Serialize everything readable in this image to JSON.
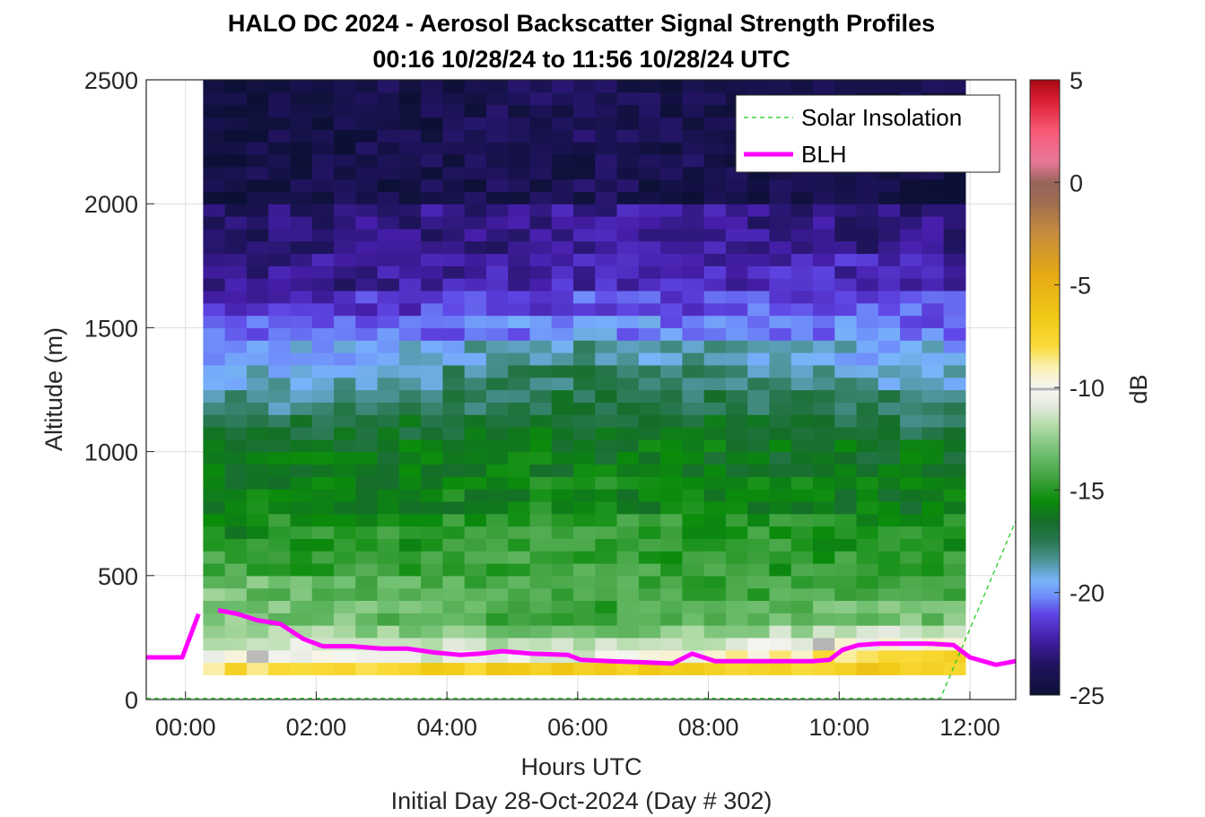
{
  "chart_data": {
    "type": "heatmap",
    "title": "HALO DC 2024 - Aerosol Backscatter Signal Strength Profiles",
    "subtitle": "00:16 10/28/24 to 11:56 10/28/24  UTC",
    "xlabel": "Hours UTC",
    "xlabel2": "Initial Day 28-Oct-2024 (Day # 302)",
    "ylabel": "Altitude (m)",
    "colorbar_label": "dB",
    "xlim": [
      -0.6,
      12.7
    ],
    "ylim": [
      0,
      2500
    ],
    "clim": [
      -25,
      5
    ],
    "x_ticks": [
      0,
      2,
      4,
      6,
      8,
      10,
      12
    ],
    "x_tick_labels": [
      "00:00",
      "02:00",
      "04:00",
      "06:00",
      "08:00",
      "10:00",
      "12:00"
    ],
    "y_ticks": [
      0,
      500,
      1000,
      1500,
      2000,
      2500
    ],
    "y_tick_labels": [
      "0",
      "500",
      "1000",
      "1500",
      "2000",
      "2500"
    ],
    "c_ticks": [
      5,
      0,
      -5,
      -10,
      -15,
      -20,
      -25
    ],
    "c_tick_labels": [
      "5",
      "0",
      "-5",
      "-10",
      "-15",
      "-20",
      "-25"
    ],
    "grid": true,
    "legend_placement": "top-right",
    "heatmap": {
      "x_start": 0.27,
      "x_end": 11.93,
      "y_start": 100,
      "y_end": 2500,
      "cell_height": 50,
      "columns": 35,
      "layers": [
        {
          "top": 150,
          "values": [
            -8,
            -7,
            -7
          ]
        },
        {
          "top": 200,
          "values": [
            -10,
            -11,
            -7
          ]
        },
        {
          "top": 250,
          "values": [
            -11,
            -12,
            -9
          ]
        },
        {
          "top": 300,
          "values": [
            -12,
            -13,
            -11
          ]
        },
        {
          "top": 400,
          "values": [
            -12.5,
            -14.5,
            -13
          ]
        },
        {
          "top": 500,
          "values": [
            -13,
            -14.5,
            -14
          ]
        },
        {
          "top": 600,
          "values": [
            -14.5,
            -14.5,
            -15
          ]
        },
        {
          "top": 750,
          "values": [
            -15.5,
            -14.5,
            -15.5
          ]
        },
        {
          "top": 900,
          "values": [
            -16,
            -15.5,
            -16
          ]
        },
        {
          "top": 1050,
          "values": [
            -16.5,
            -16,
            -16.5
          ]
        },
        {
          "top": 1150,
          "values": [
            -17,
            -16.5,
            -17.5
          ]
        },
        {
          "top": 1250,
          "values": [
            -18.5,
            -17,
            -18
          ]
        },
        {
          "top": 1350,
          "values": [
            -19.5,
            -17.5,
            -19
          ]
        },
        {
          "top": 1450,
          "values": [
            -20,
            -18.5,
            -19.5
          ]
        },
        {
          "top": 1550,
          "values": [
            -21,
            -20,
            -20.5
          ]
        },
        {
          "top": 1650,
          "values": [
            -22,
            -21,
            -21
          ]
        },
        {
          "top": 1800,
          "values": [
            -23,
            -22,
            -22
          ]
        },
        {
          "top": 2000,
          "values": [
            -23.5,
            -22.5,
            -23
          ]
        },
        {
          "top": 2500,
          "values": [
            -24.5,
            -24,
            -24.5
          ]
        }
      ]
    },
    "series": [
      {
        "name": "Solar Insolation",
        "style": "dashed",
        "color": "#22cc22",
        "x": [
          -0.6,
          11.55,
          12.7
        ],
        "y": [
          5,
          5,
          720
        ]
      },
      {
        "name": "BLH",
        "style": "solid",
        "color": "#ff00ff",
        "segments": [
          {
            "x": [
              -0.6,
              -0.05,
              0.2
            ],
            "y": [
              170,
              170,
              345
            ]
          },
          {
            "x": [
              0.5,
              0.8,
              1.1,
              1.45,
              1.8,
              2.1,
              2.55,
              3.0,
              3.4,
              3.8,
              4.2,
              4.5,
              4.85,
              5.3,
              5.85,
              6.05,
              6.5,
              7.0,
              7.45,
              7.75,
              8.1,
              8.6,
              9.1,
              9.6,
              9.85,
              10.05,
              10.3,
              10.6,
              11.0,
              11.4,
              11.75,
              12.0,
              12.4,
              12.7
            ],
            "y": [
              360,
              345,
              320,
              305,
              245,
              215,
              215,
              205,
              205,
              190,
              180,
              185,
              195,
              185,
              180,
              160,
              155,
              150,
              145,
              185,
              155,
              155,
              155,
              155,
              160,
              200,
              220,
              225,
              225,
              225,
              220,
              170,
              140,
              155
            ]
          }
        ]
      }
    ]
  }
}
